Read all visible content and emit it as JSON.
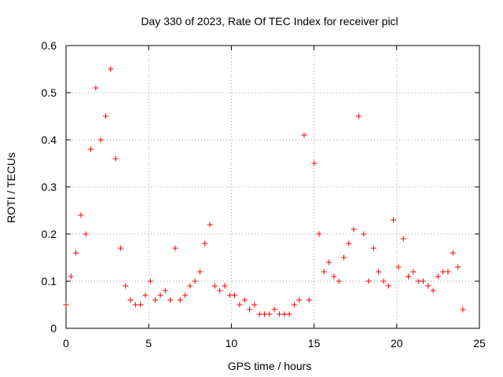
{
  "chart_data": {
    "type": "scatter",
    "title": "Day 330 of 2023, Rate Of TEC Index for receiver picl",
    "xlabel": "GPS time / hours",
    "ylabel": "ROTI / TECUs",
    "xlim": [
      0,
      25
    ],
    "ylim": [
      0,
      0.6
    ],
    "xticks": [
      0,
      5,
      10,
      15,
      20,
      25
    ],
    "xtick_labels": [
      "0",
      "5",
      "10",
      "15",
      "20",
      "25"
    ],
    "yticks": [
      0,
      0.1,
      0.2,
      0.3,
      0.4,
      0.5,
      0.6
    ],
    "ytick_labels": [
      "0",
      "0.1",
      "0.2",
      "0.3",
      "0.4",
      "0.5",
      "0.6"
    ],
    "grid": true,
    "marker": "+",
    "marker_color": "#ff0000",
    "series": [
      {
        "name": "ROTI",
        "x": [
          0.0,
          0.3,
          0.6,
          0.9,
          1.2,
          1.5,
          1.8,
          2.1,
          2.4,
          2.7,
          3.0,
          3.3,
          3.6,
          3.9,
          4.2,
          4.5,
          4.8,
          5.1,
          5.4,
          5.7,
          6.0,
          6.3,
          6.6,
          6.9,
          7.2,
          7.5,
          7.8,
          8.1,
          8.4,
          8.7,
          9.0,
          9.3,
          9.6,
          9.9,
          10.2,
          10.5,
          10.8,
          11.1,
          11.4,
          11.7,
          12.0,
          12.3,
          12.6,
          12.9,
          13.2,
          13.5,
          13.8,
          14.1,
          14.4,
          14.7,
          15.0,
          15.3,
          15.6,
          15.9,
          16.2,
          16.5,
          16.8,
          17.1,
          17.4,
          17.7,
          18.0,
          18.3,
          18.6,
          18.9,
          19.2,
          19.5,
          19.8,
          20.1,
          20.4,
          20.7,
          21.0,
          21.3,
          21.6,
          21.9,
          22.2,
          22.5,
          22.8,
          23.1,
          23.4,
          23.7,
          24.0
        ],
        "y": [
          0.05,
          0.11,
          0.16,
          0.24,
          0.2,
          0.38,
          0.51,
          0.4,
          0.45,
          0.55,
          0.36,
          0.17,
          0.09,
          0.06,
          0.05,
          0.05,
          0.07,
          0.1,
          0.06,
          0.07,
          0.08,
          0.06,
          0.17,
          0.06,
          0.07,
          0.09,
          0.1,
          0.12,
          0.18,
          0.22,
          0.09,
          0.08,
          0.09,
          0.07,
          0.07,
          0.05,
          0.06,
          0.04,
          0.05,
          0.03,
          0.03,
          0.03,
          0.04,
          0.03,
          0.03,
          0.03,
          0.05,
          0.06,
          0.41,
          0.06,
          0.35,
          0.2,
          0.12,
          0.14,
          0.11,
          0.1,
          0.15,
          0.18,
          0.21,
          0.45,
          0.2,
          0.1,
          0.17,
          0.12,
          0.1,
          0.09,
          0.23,
          0.13,
          0.19,
          0.11,
          0.12,
          0.1,
          0.1,
          0.09,
          0.08,
          0.11,
          0.12,
          0.12,
          0.16,
          0.13,
          0.04
        ]
      }
    ]
  }
}
